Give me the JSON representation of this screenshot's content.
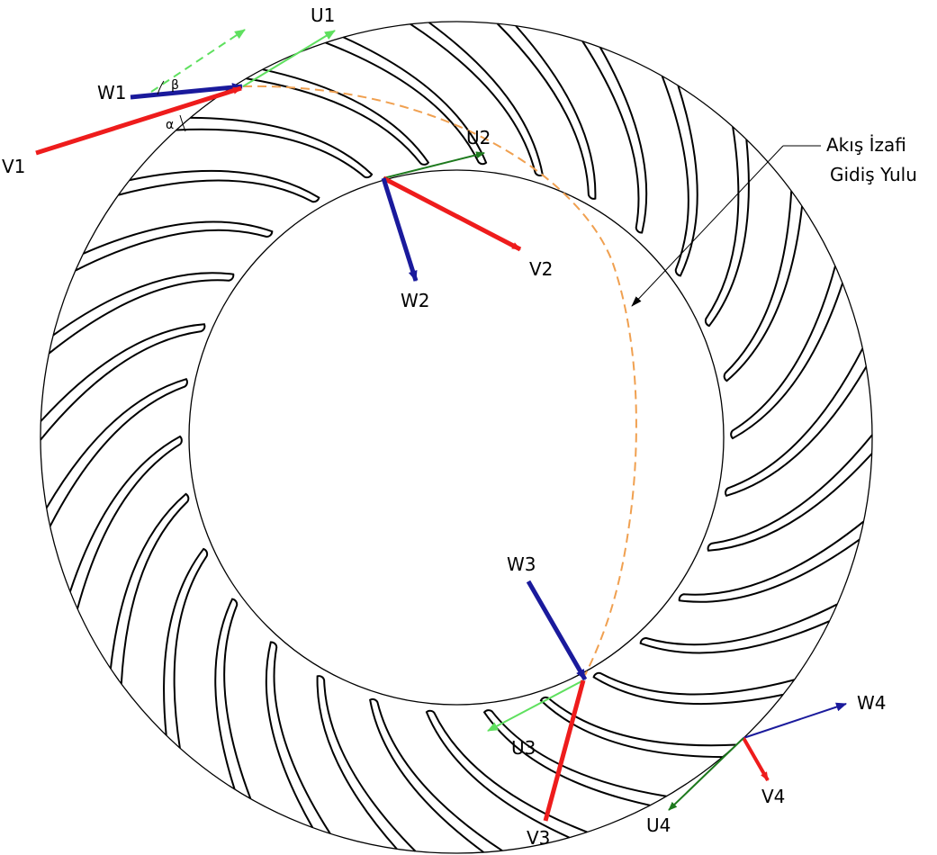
{
  "colors": {
    "red": "#ee1c1c",
    "blue": "#1a1a9c",
    "green": "#1e7a1e",
    "light_green": "#5fe05f",
    "orange": "#f0a050",
    "black": "#000000"
  },
  "labels": {
    "u1": "U1",
    "w1": "W1",
    "v1": "V1",
    "beta": "β",
    "alpha": "α",
    "u2": "U2",
    "v2": "V2",
    "w2": "W2",
    "w3": "W3",
    "u3": "U3",
    "v3": "V3",
    "w4": "W4",
    "v4": "V4",
    "u4": "U4",
    "path_line1": "Akış İzafi",
    "path_line2": "Gidiş Yulu"
  }
}
